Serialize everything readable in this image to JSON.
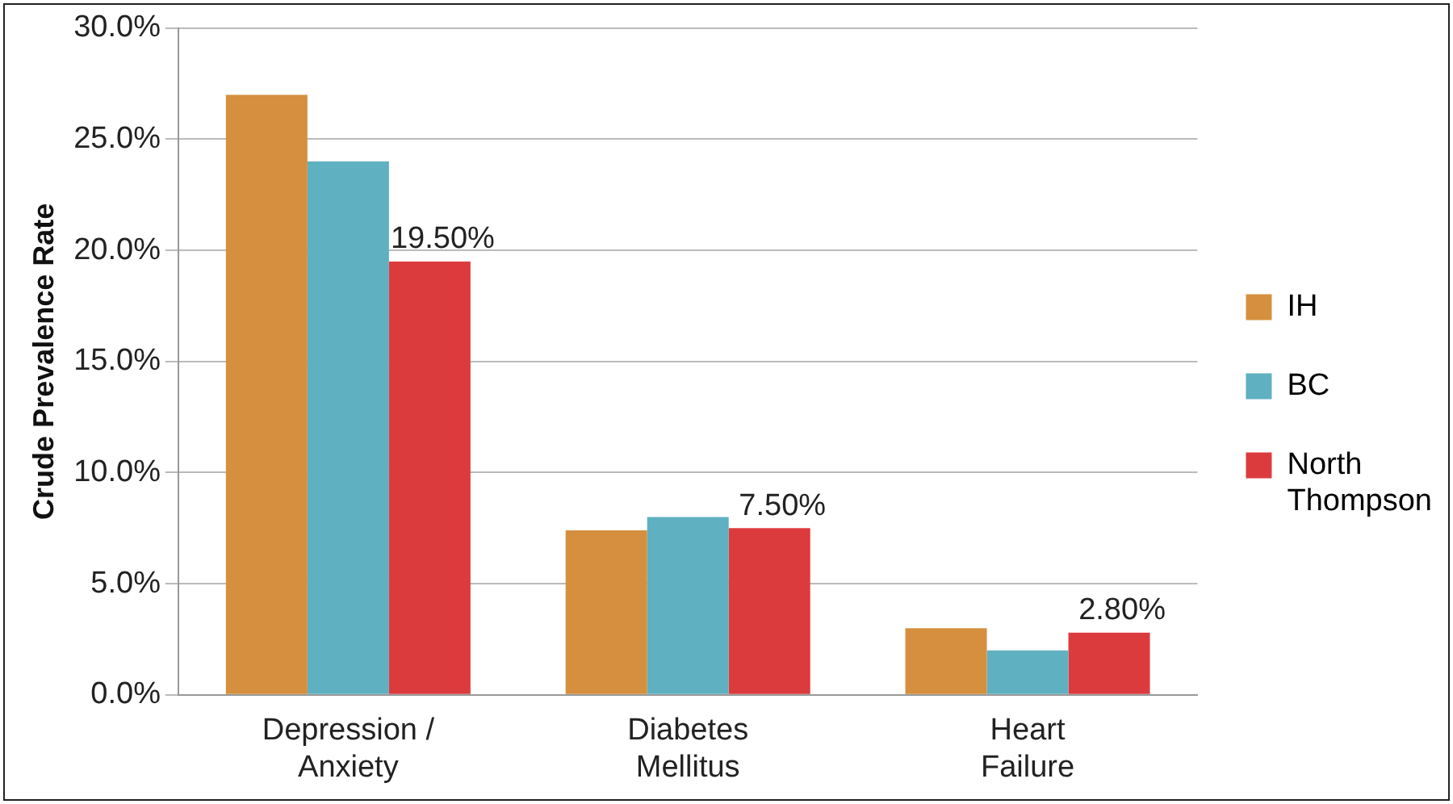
{
  "chart_data": {
    "type": "bar",
    "ylabel": "Crude Prevalence Rate",
    "categories": [
      "Depression / Anxiety",
      "Diabetes Mellitus",
      "Heart Failure"
    ],
    "series": [
      {
        "name": "IH",
        "color": "#d58f3e",
        "values": [
          27.0,
          7.4,
          3.0
        ]
      },
      {
        "name": "BC",
        "color": "#5fb0c0",
        "values": [
          24.0,
          8.0,
          2.0
        ]
      },
      {
        "name": "North Thompson",
        "color": "#dc3b3e",
        "values": [
          19.5,
          7.5,
          2.8
        ],
        "value_labels": [
          "19.50%",
          "7.50%",
          "2.80%"
        ]
      }
    ],
    "ylim": [
      0,
      30
    ],
    "yticks": [
      {
        "value": 0,
        "label": "0.0%"
      },
      {
        "value": 5,
        "label": "5.0%"
      },
      {
        "value": 10,
        "label": "10.0%"
      },
      {
        "value": 15,
        "label": "15.0%"
      },
      {
        "value": 20,
        "label": "20.0%"
      },
      {
        "value": 25,
        "label": "25.0%"
      },
      {
        "value": 30,
        "label": "30.0%"
      }
    ],
    "grid": "y",
    "legend": "right"
  }
}
